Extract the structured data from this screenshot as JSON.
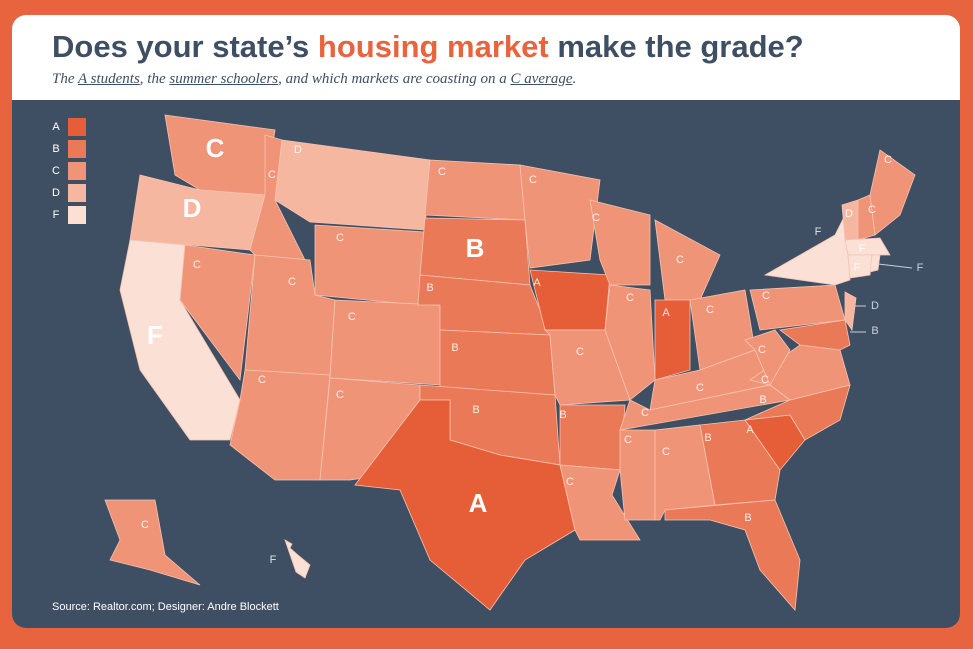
{
  "header": {
    "title_parts": [
      "Does your state’s ",
      "housing market",
      " make the grade?"
    ],
    "subtitle_parts": [
      "The ",
      "A students",
      ", the ",
      "summer schoolers",
      ", and which markets are coasting on a ",
      "C average",
      "."
    ]
  },
  "legend": {
    "items": [
      {
        "grade": "A",
        "color": "#e55e38"
      },
      {
        "grade": "B",
        "color": "#ea7a57"
      },
      {
        "grade": "C",
        "color": "#ef9477"
      },
      {
        "grade": "D",
        "color": "#f5b7a0"
      },
      {
        "grade": "F",
        "color": "#fbe0d5"
      }
    ]
  },
  "map": {
    "labels": [
      "C",
      "D",
      "F",
      "C",
      "C",
      "D",
      "C",
      "C",
      "C",
      "C",
      "C",
      "C",
      "B",
      "B",
      "B",
      "B",
      "A",
      "C",
      "A",
      "C",
      "B",
      "C",
      "C",
      "C",
      "C",
      "A",
      "C",
      "C",
      "C",
      "C",
      "C",
      "B",
      "B",
      "A",
      "B",
      "C",
      "C",
      "C",
      "F",
      "B",
      "D",
      "D",
      "C",
      "C",
      "F",
      "F",
      "F",
      "C",
      "F"
    ]
  },
  "footer": {
    "source": "Source: Realtor.com; Designer: Andre Blockett"
  }
}
